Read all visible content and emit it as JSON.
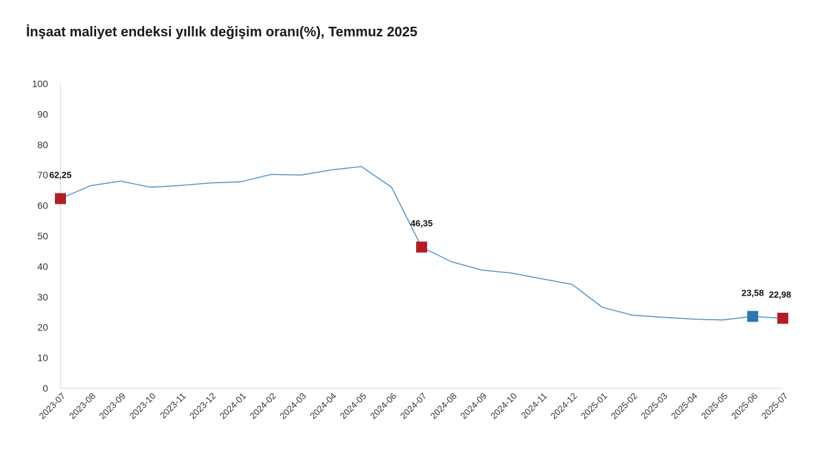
{
  "chart_data": {
    "type": "line",
    "title": "İnşaat maliyet endeksi yıllık değişim oranı(%), Temmuz 2025",
    "xlabel": "",
    "ylabel": "",
    "ylim": [
      0,
      100
    ],
    "yticks": [
      0,
      10,
      20,
      30,
      40,
      50,
      60,
      70,
      80,
      90,
      100
    ],
    "grid": false,
    "line_color": "#4a8ec7",
    "x": [
      "2023-07",
      "2023-08",
      "2023-09",
      "2023-10",
      "2023-11",
      "2023-12",
      "2024-01",
      "2024-02",
      "2024-03",
      "2024-04",
      "2024-05",
      "2024-06",
      "2024-07",
      "2024-08",
      "2024-09",
      "2024-10",
      "2024-11",
      "2024-12",
      "2025-01",
      "2025-02",
      "2025-03",
      "2025-04",
      "2025-05",
      "2025-06",
      "2025-07"
    ],
    "series": [
      {
        "values": [
          62.25,
          66.5,
          68.0,
          66.0,
          66.6,
          67.4,
          67.8,
          70.2,
          70.0,
          71.7,
          72.8,
          66.0,
          46.35,
          41.5,
          38.8,
          37.8,
          35.9,
          34.1,
          26.6,
          24.0,
          23.3,
          22.7,
          22.4,
          23.58,
          22.98
        ]
      }
    ],
    "highlighted_points": [
      {
        "x": "2023-07",
        "label": "62,25",
        "color": "#b41c24"
      },
      {
        "x": "2024-07",
        "label": "46,35",
        "color": "#b41c24"
      },
      {
        "x": "2025-06",
        "label": "23,58",
        "color": "#2e75b6"
      },
      {
        "x": "2025-07",
        "label": "22,98",
        "color": "#b41c24"
      }
    ]
  }
}
